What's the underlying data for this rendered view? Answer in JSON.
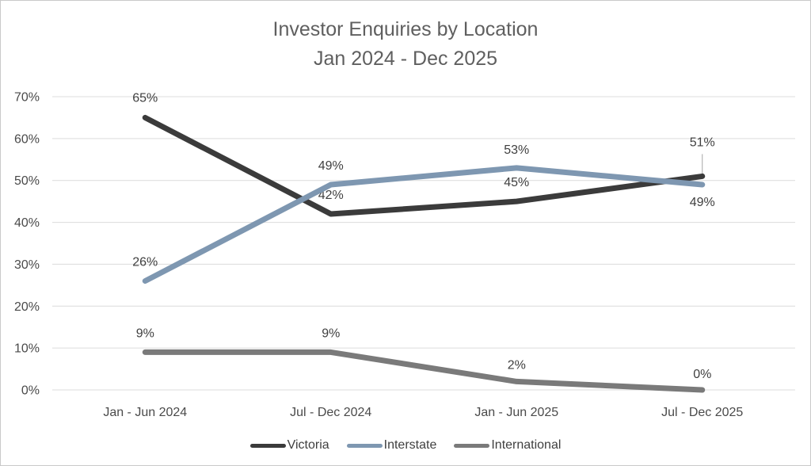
{
  "title": {
    "line1": "Investor Enquiries by Location",
    "line2": "Jan 2024 - Dec 2025"
  },
  "chart_data": {
    "type": "line",
    "title": "Investor Enquiries by Location Jan 2024 - Dec 2025",
    "categories": [
      "Jan - Jun 2024",
      "Jul - Dec 2024",
      "Jan - Jun 2025",
      "Jul - Dec 2025"
    ],
    "series": [
      {
        "name": "Victoria",
        "color": "#3b3b3b",
        "values": [
          65,
          42,
          45,
          51
        ],
        "label_dy": [
          -20,
          -19,
          -19,
          -38
        ],
        "leader_at": 3
      },
      {
        "name": "Interstate",
        "color": "#7e97b1",
        "values": [
          26,
          49,
          53,
          49
        ],
        "label_dy": [
          -19,
          -19,
          -18,
          27
        ]
      },
      {
        "name": "International",
        "color": "#7a7a7a",
        "values": [
          9,
          9,
          2,
          0
        ],
        "label_dy": [
          -19,
          -19,
          -16,
          -15
        ]
      }
    ],
    "xlabel": "",
    "ylabel": "",
    "ylim": [
      0,
      70
    ],
    "ytick": 10,
    "ytick_suffix": "%",
    "grid": true,
    "legend_position": "bottom"
  },
  "colors": {
    "grid": "#dcdcdc",
    "axis_text": "#4a4a4a",
    "label_text": "#3f3f3f",
    "title_text": "#5f5f5f",
    "leader": "#a6a6a6",
    "border": "#c9c9c9"
  }
}
